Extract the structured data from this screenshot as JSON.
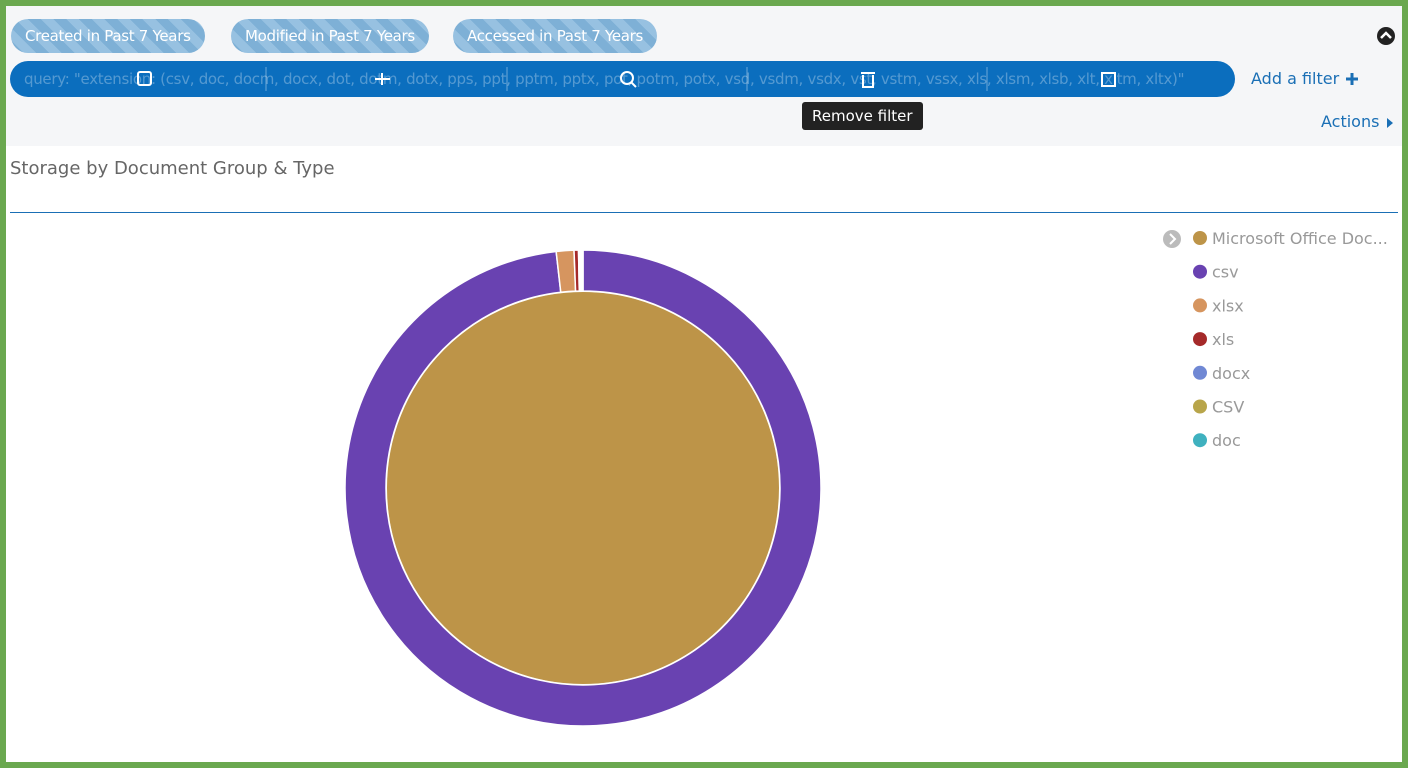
{
  "filters": {
    "pills": [
      "Created in Past 7 Years",
      "Modified in Past 7 Years",
      "Accessed in Past 7 Years"
    ],
    "query": "query: \"extension: (csv, doc, docm, docx, dot, dotm, dotx, pps, ppt, pptm, pptx, pot, potm, potx, vsd, vsdm, vsdx, vst, vstm, vssx, xls, xlsm, xlsb, xlt, xltm, xltx)\"",
    "add_filter": "Add a filter",
    "tooltip": "Remove filter"
  },
  "actions": "Actions",
  "chart_data": {
    "type": "pie",
    "title": "Storage by Document Group & Type",
    "rings": [
      {
        "categories": [
          "Microsoft Office Doc..."
        ],
        "values": [
          100
        ],
        "colors": [
          "#bd9448"
        ]
      },
      {
        "categories": [
          "csv",
          "xlsx",
          "xls",
          "docx",
          "CSV",
          "doc"
        ],
        "values": [
          98.2,
          1.2,
          0.3,
          0.1,
          0.1,
          0.1
        ],
        "colors": [
          "#6942b1",
          "#d6955f",
          "#a52a2a",
          "#7088d4",
          "#b8a54a",
          "#3fb1bf"
        ]
      }
    ]
  }
}
